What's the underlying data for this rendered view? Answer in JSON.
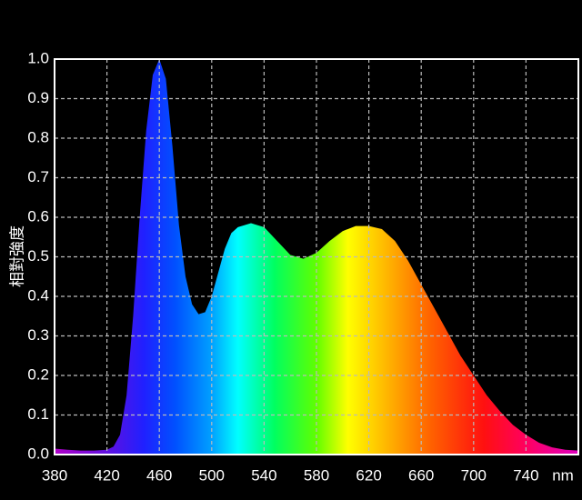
{
  "chart_data": {
    "type": "area",
    "y_label": "相對強度",
    "x_label": "nm",
    "x": [
      380,
      390,
      400,
      410,
      420,
      425,
      430,
      435,
      440,
      445,
      450,
      455,
      460,
      465,
      470,
      475,
      480,
      485,
      490,
      495,
      500,
      505,
      510,
      515,
      520,
      530,
      540,
      550,
      560,
      570,
      580,
      590,
      600,
      610,
      620,
      630,
      640,
      650,
      660,
      670,
      680,
      690,
      700,
      710,
      720,
      730,
      740,
      750,
      760,
      770,
      780
    ],
    "values": [
      0.015,
      0.012,
      0.01,
      0.01,
      0.012,
      0.02,
      0.05,
      0.15,
      0.35,
      0.6,
      0.82,
      0.96,
      1.0,
      0.95,
      0.78,
      0.58,
      0.45,
      0.38,
      0.355,
      0.36,
      0.4,
      0.46,
      0.52,
      0.56,
      0.575,
      0.585,
      0.575,
      0.54,
      0.505,
      0.495,
      0.51,
      0.54,
      0.565,
      0.578,
      0.578,
      0.57,
      0.54,
      0.49,
      0.43,
      0.37,
      0.31,
      0.25,
      0.2,
      0.15,
      0.11,
      0.075,
      0.05,
      0.03,
      0.018,
      0.012,
      0.01
    ],
    "xlim": [
      380,
      780
    ],
    "ylim": [
      0,
      1
    ],
    "xticks": [
      380,
      420,
      460,
      500,
      540,
      580,
      620,
      660,
      700,
      740
    ],
    "yticks": [
      {
        "value": 0,
        "label": "0.0"
      },
      0.1,
      0.2,
      0.3,
      0.4,
      0.5,
      0.6,
      0.7,
      0.8,
      0.9,
      {
        "value": 1,
        "label": "1.0"
      }
    ],
    "grid": true
  }
}
